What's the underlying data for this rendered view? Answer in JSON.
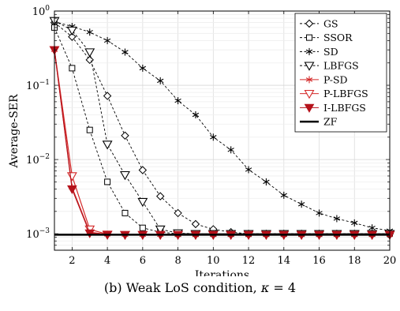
{
  "chart_data": {
    "type": "line",
    "title": "",
    "xlabel": "Iterations",
    "ylabel": "Average-SER",
    "xlim": [
      1,
      20
    ],
    "ylim": [
      0.0006,
      1
    ],
    "yscale": "log",
    "grid": true,
    "legend_position": "top-right",
    "xticks": [
      2,
      4,
      6,
      8,
      10,
      12,
      14,
      16,
      18,
      20
    ],
    "xtick_labels": [
      "2",
      "4",
      "6",
      "8",
      "10",
      "12",
      "14",
      "16",
      "18",
      "20"
    ],
    "yticks": [
      0.001,
      0.01,
      0.1,
      1
    ],
    "ytick_labels": [
      {
        "base": "10",
        "exp": "−3"
      },
      {
        "base": "10",
        "exp": "−2"
      },
      {
        "base": "10",
        "exp": "−1"
      },
      {
        "base": "10",
        "exp": "0"
      }
    ],
    "x": [
      1,
      2,
      3,
      4,
      5,
      6,
      7,
      8,
      9,
      10,
      11,
      12,
      13,
      14,
      15,
      16,
      17,
      18,
      19,
      20
    ],
    "series": [
      {
        "name": "GS",
        "color": "#000000",
        "marker": "diamond",
        "dash": true,
        "values": [
          0.7,
          0.45,
          0.22,
          0.072,
          0.021,
          0.0072,
          0.0032,
          0.0019,
          0.00135,
          0.00115,
          0.00105,
          0.001,
          0.001,
          0.001,
          0.001,
          0.001,
          0.001,
          0.001,
          0.001,
          0.001
        ]
      },
      {
        "name": "SSOR",
        "color": "#000000",
        "marker": "square",
        "dash": true,
        "values": [
          0.6,
          0.17,
          0.025,
          0.005,
          0.0019,
          0.0012,
          0.00105,
          0.001,
          0.001,
          0.001,
          0.001,
          0.001,
          0.001,
          0.001,
          0.001,
          0.001,
          0.001,
          0.001,
          0.001,
          0.001
        ]
      },
      {
        "name": "SD",
        "color": "#000000",
        "marker": "asterisk",
        "dash": true,
        "values": [
          0.72,
          0.62,
          0.52,
          0.4,
          0.28,
          0.17,
          0.115,
          0.062,
          0.04,
          0.02,
          0.0135,
          0.0073,
          0.005,
          0.0033,
          0.0025,
          0.0019,
          0.0016,
          0.0014,
          0.0012,
          0.0011
        ]
      },
      {
        "name": "LBFGS",
        "color": "#000000",
        "marker": "triangle-down",
        "dash": true,
        "values": [
          0.74,
          0.55,
          0.28,
          0.016,
          0.0062,
          0.0027,
          0.00115,
          0.00102,
          0.001,
          0.001,
          0.001,
          0.001,
          0.001,
          0.001,
          0.001,
          0.001,
          0.001,
          0.001,
          0.001,
          0.001
        ]
      },
      {
        "name": "P-SD",
        "color": "#d42a2a",
        "marker": "asterisk",
        "dash": false,
        "values": [
          0.3,
          0.0042,
          0.00105,
          0.00098,
          0.00097,
          0.00097,
          0.00097,
          0.00097,
          0.00097,
          0.00097,
          0.00097,
          0.00097,
          0.00097,
          0.00097,
          0.00097,
          0.00097,
          0.00097,
          0.00097,
          0.00097,
          0.00097
        ]
      },
      {
        "name": "P-LBFGS",
        "color": "#d42a2a",
        "marker": "triangle-down-open",
        "dash": false,
        "values": [
          0.3,
          0.006,
          0.00115,
          0.00098,
          0.00097,
          0.00097,
          0.00097,
          0.00097,
          0.00097,
          0.00097,
          0.00097,
          0.00097,
          0.00097,
          0.00097,
          0.00097,
          0.00097,
          0.00097,
          0.00097,
          0.00097,
          0.00097
        ]
      },
      {
        "name": "I-LBFGS",
        "color": "#b5121b",
        "marker": "triangle-down-filled",
        "dash": false,
        "values": [
          0.3,
          0.004,
          0.00102,
          0.00097,
          0.00097,
          0.00097,
          0.00097,
          0.00097,
          0.00097,
          0.00097,
          0.00097,
          0.00097,
          0.00097,
          0.00097,
          0.00097,
          0.00097,
          0.00097,
          0.00097,
          0.00097,
          0.00097
        ]
      },
      {
        "name": "ZF",
        "color": "#000000",
        "marker": "none",
        "dash": false,
        "thick": true,
        "values": [
          0.00097,
          0.00097,
          0.00097,
          0.00097,
          0.00097,
          0.00097,
          0.00097,
          0.00097,
          0.00097,
          0.00097,
          0.00097,
          0.00097,
          0.00097,
          0.00097,
          0.00097,
          0.00097,
          0.00097,
          0.00097,
          0.00097,
          0.00097
        ]
      }
    ]
  },
  "caption": {
    "label": "(b) Weak LoS condition, ",
    "kappa": "κ",
    "equals": " = 4"
  }
}
